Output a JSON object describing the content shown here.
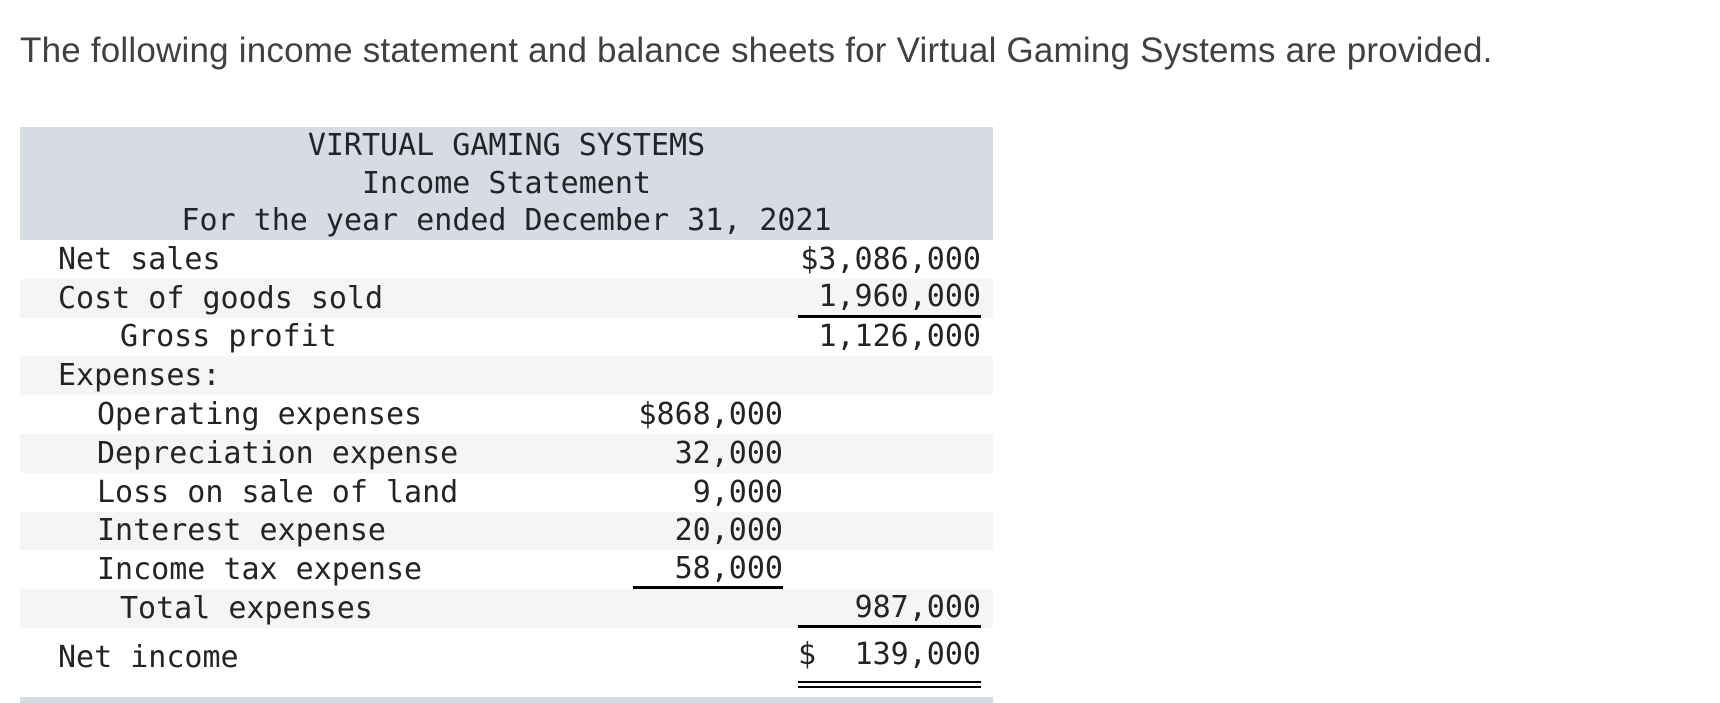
{
  "page": {
    "intro_text": "The following income statement and balance sheets for Virtual Gaming Systems are provided."
  },
  "statement": {
    "header": {
      "company": "VIRTUAL GAMING SYSTEMS",
      "title": "Income Statement",
      "period": "For the year ended December 31, 2021"
    },
    "rows": [
      {
        "label": "Net sales",
        "mid": "",
        "right": "$3,086,000"
      },
      {
        "label": "Cost of goods sold",
        "mid": "",
        "right": "1,960,000"
      },
      {
        "label": "Gross profit",
        "mid": "",
        "right": "1,126,000"
      },
      {
        "label": "Expenses:",
        "mid": "",
        "right": ""
      },
      {
        "label": "Operating expenses",
        "mid": "$868,000",
        "right": ""
      },
      {
        "label": "Depreciation expense",
        "mid": "32,000",
        "right": ""
      },
      {
        "label": "Loss on sale of land",
        "mid": "9,000",
        "right": ""
      },
      {
        "label": "Interest expense",
        "mid": "20,000",
        "right": ""
      },
      {
        "label": "Income tax expense",
        "mid": "58,000",
        "right": ""
      },
      {
        "label": "Total expenses",
        "mid": "",
        "right": "987,000"
      },
      {
        "label": "Net income",
        "mid": "",
        "currency": "$",
        "right": "139,000"
      }
    ]
  },
  "colors": {
    "header_background": "#d6dbe4",
    "row_stripe": "#f5f5f5",
    "text": "#222427",
    "underline": "#000000"
  }
}
